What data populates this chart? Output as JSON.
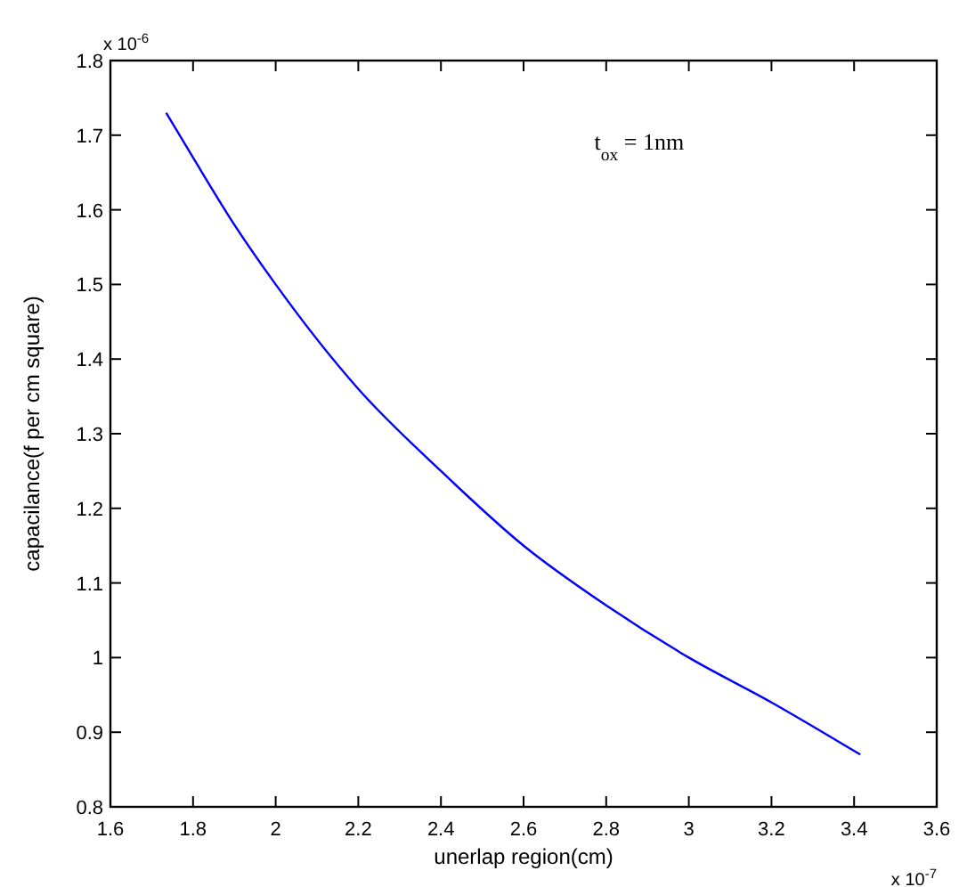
{
  "chart_data": {
    "type": "line",
    "xlabel": "unerlap region(cm)",
    "ylabel": "capacilance(f per cm square)",
    "x": [
      1.735,
      1.8,
      1.9,
      2.0,
      2.2,
      2.4,
      2.6,
      2.8,
      3.0,
      3.2,
      3.415
    ],
    "series": [
      {
        "color": "#0000ff",
        "values": [
          1.73,
          1.67,
          1.58,
          1.5,
          1.36,
          1.25,
          1.15,
          1.07,
          1.0,
          0.94,
          0.87
        ]
      }
    ],
    "xlim": [
      1.6,
      3.6
    ],
    "xticks": [
      1.6,
      1.8,
      2,
      2.2,
      2.4,
      2.6,
      2.8,
      3,
      3.2,
      3.4,
      3.6
    ],
    "ylim": [
      0.8,
      1.8
    ],
    "yticks": [
      0.8,
      0.9,
      1,
      1.1,
      1.2,
      1.3,
      1.4,
      1.5,
      1.6,
      1.7,
      1.8
    ],
    "grid": false,
    "marker": "none",
    "line_style": "solid",
    "annotations": [
      "x 10$^{-6}$",
      "x 10$^{-7}$",
      "t$_{ox}$ = 1nm"
    ]
  }
}
